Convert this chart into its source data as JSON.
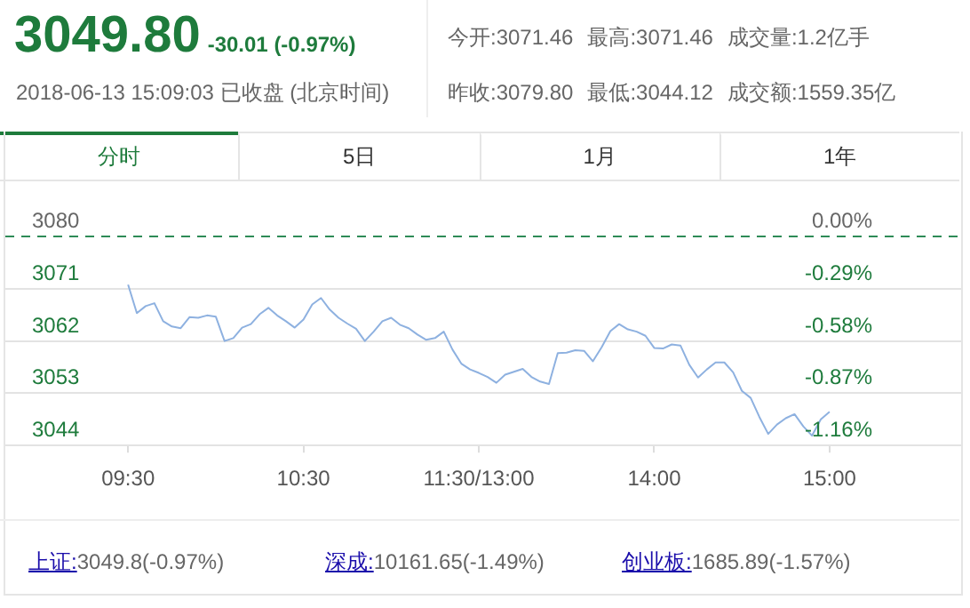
{
  "chart_data": {
    "type": "line",
    "title": "3049.80",
    "subtitle": "-30.01 (-0.97%)",
    "annotations": [
      "2018-06-13 15:09:03 已收盘 (北京时间)",
      "今开:3071.46",
      "最高:3071.46",
      "成交量:1.2亿手",
      "昨收:3079.80",
      "最低:3044.12",
      "成交额:1559.35亿",
      "分时",
      "5日",
      "1月",
      "1年",
      "上证:",
      "3049.8(-0.97%)",
      "深成:",
      "10161.65(-1.49%)",
      "创业板:",
      "1685.89(-1.57%)"
    ],
    "categories": [
      "09:30",
      null,
      null,
      null,
      null,
      null,
      null,
      null,
      null,
      null,
      null,
      null,
      null,
      null,
      null,
      null,
      null,
      null,
      null,
      null,
      "10:30",
      null,
      null,
      null,
      null,
      null,
      null,
      null,
      null,
      null,
      null,
      null,
      null,
      null,
      null,
      null,
      null,
      null,
      null,
      null,
      "11:30/13:00",
      null,
      null,
      null,
      null,
      null,
      null,
      null,
      null,
      null,
      null,
      null,
      null,
      null,
      null,
      null,
      null,
      null,
      null,
      null,
      "14:00",
      null,
      null,
      null,
      null,
      null,
      null,
      null,
      null,
      null,
      null,
      null,
      null,
      null,
      null,
      null,
      null,
      null,
      null,
      null,
      "15:00"
    ],
    "series": [
      {
        "color": "#8eb1e0",
        "values": [
          3071.7,
          3066.8,
          3068,
          3068.5,
          3065.4,
          3064.5,
          3064.2,
          3066.1,
          3066,
          3066.4,
          3066.2,
          3062,
          3062.5,
          3064.3,
          3064.9,
          3066.6,
          3067.7,
          3066.4,
          3065.4,
          3064.3,
          3065.7,
          3068.3,
          3069.4,
          3067.4,
          3066,
          3065,
          3064.1,
          3062,
          3063.6,
          3065.4,
          3066,
          3064.8,
          3064.2,
          3063.1,
          3062.2,
          3062.5,
          3063.6,
          3060.5,
          3058.1,
          3057.1,
          3056.5,
          3055.8,
          3054.8,
          3056.2,
          3056.7,
          3057.2,
          3055.8,
          3055,
          3054.6,
          3059.9,
          3060,
          3060.4,
          3060.3,
          3058.5,
          3060.9,
          3063.7,
          3064.9,
          3064,
          3063.6,
          3062.9,
          3060.8,
          3060.7,
          3061.4,
          3061.2,
          3057.9,
          3055.7,
          3057.1,
          3058.3,
          3058.3,
          3056.6,
          3053.4,
          3052.2,
          3048.9,
          3046,
          3047.6,
          3048.7,
          3049.4,
          3047.3,
          3045.7,
          3048.5,
          3049.8
        ]
      }
    ],
    "ylim": [
      3044,
      3080
    ],
    "yticks": [
      3044,
      3053,
      3062,
      3071,
      3080
    ],
    "y2lim": [
      -1.16,
      0
    ],
    "y2ticks": [
      {
        "value": -1.16,
        "label": "-1.16%"
      },
      {
        "value": -0.87,
        "label": "-0.87%"
      },
      {
        "value": -0.58,
        "label": "-0.58%"
      },
      {
        "value": -0.29,
        "label": "-0.29%"
      },
      {
        "value": 0,
        "label": "0.00%"
      }
    ],
    "ref_lines": [
      {
        "axis": "y",
        "value": 3080,
        "color": "#2e8b57",
        "line_style": "dashed"
      }
    ],
    "grid": "y",
    "legend": false,
    "marker": "none",
    "line_style": "solid"
  }
}
